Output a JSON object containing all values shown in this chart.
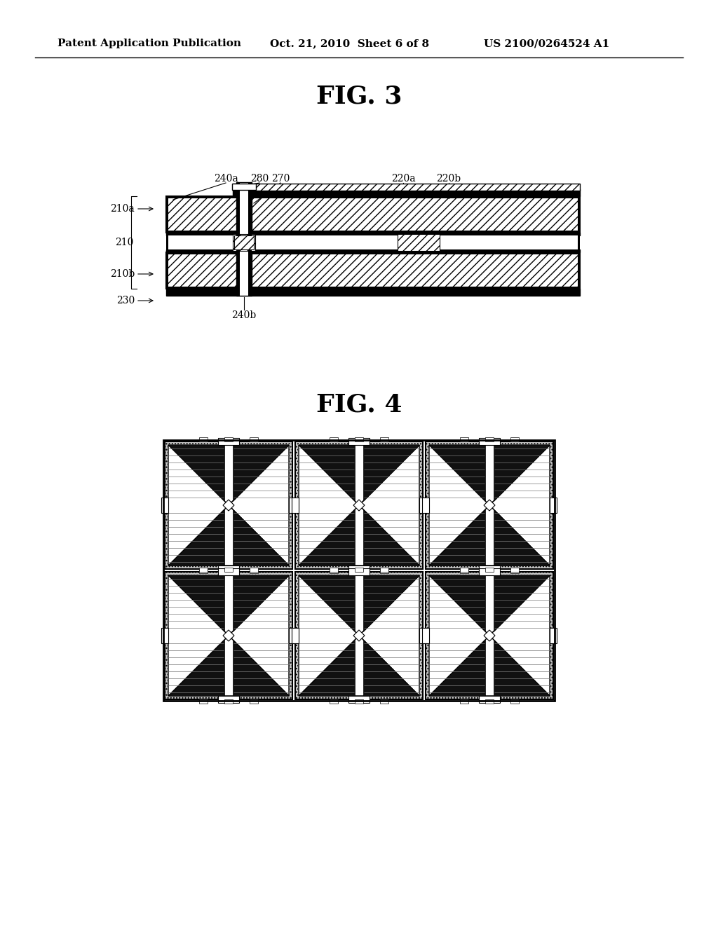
{
  "bg_color": "#ffffff",
  "header_left": "Patent Application Publication",
  "header_mid": "Oct. 21, 2010  Sheet 6 of 8",
  "header_right": "US 2100/0264524 A1",
  "fig3_title": "FIG. 3",
  "fig4_title": "FIG. 4"
}
